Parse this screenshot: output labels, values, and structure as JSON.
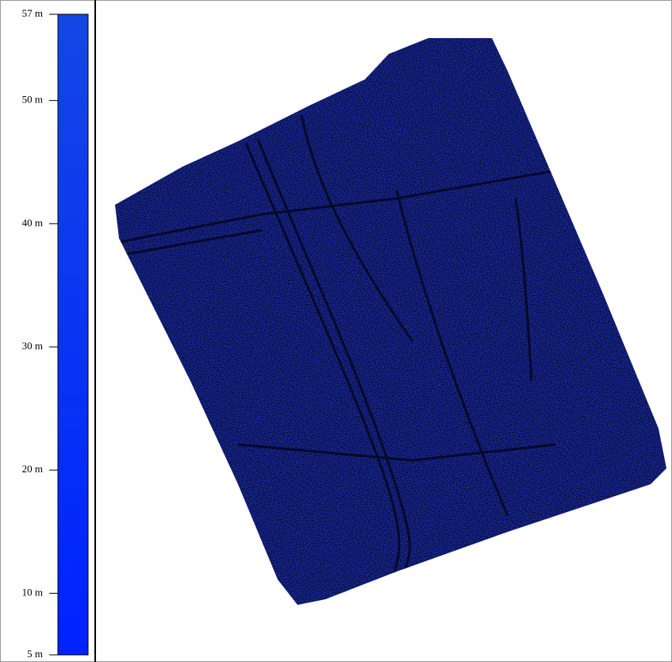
{
  "legend": {
    "range": [
      5,
      57
    ],
    "ticks": [
      {
        "value": 57,
        "label": "57 m"
      },
      {
        "value": 50,
        "label": "50 m"
      },
      {
        "value": 40,
        "label": "40 m"
      },
      {
        "value": 30,
        "label": "30 m"
      },
      {
        "value": 20,
        "label": "20 m"
      },
      {
        "value": 10,
        "label": "10 m"
      },
      {
        "value": 5,
        "label": "5 m"
      }
    ]
  }
}
